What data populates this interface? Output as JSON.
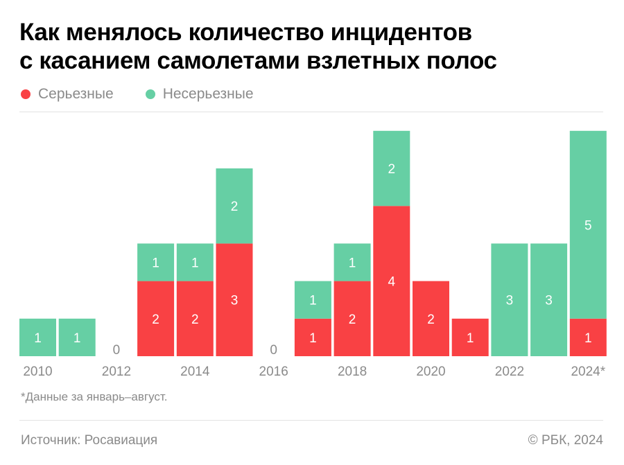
{
  "title": {
    "line1": "Как менялось количество инцидентов",
    "line2": "с касанием самолетами взлетных полос"
  },
  "legend": [
    {
      "label": "Серьезные",
      "color": "#f94144"
    },
    {
      "label": "Несерьезные",
      "color": "#66cfa4"
    }
  ],
  "chart_data": {
    "type": "bar",
    "stacked": true,
    "categories": [
      "2010",
      "2011",
      "2012",
      "2013",
      "2014",
      "2015",
      "2016",
      "2017",
      "2018",
      "2019",
      "2020",
      "2021",
      "2022",
      "2023",
      "2024*"
    ],
    "axis_labels": [
      "2010",
      "",
      "2012",
      "",
      "2014",
      "",
      "2016",
      "",
      "2018",
      "",
      "2020",
      "",
      "2022",
      "",
      "2024*"
    ],
    "series": [
      {
        "name": "Серьезные",
        "color": "#f94144",
        "values": [
          0,
          0,
          0,
          2,
          2,
          3,
          0,
          1,
          2,
          4,
          2,
          1,
          0,
          0,
          1
        ]
      },
      {
        "name": "Несерьезные",
        "color": "#66cfa4",
        "values": [
          1,
          1,
          0,
          1,
          1,
          2,
          0,
          1,
          1,
          2,
          0,
          0,
          3,
          3,
          5
        ]
      }
    ],
    "zero_label": "0",
    "ylim": [
      0,
      6
    ]
  },
  "footnote": "*Данные за январь–август.",
  "source": "Источник: Росавиация",
  "copyright": "© РБК, 2024"
}
